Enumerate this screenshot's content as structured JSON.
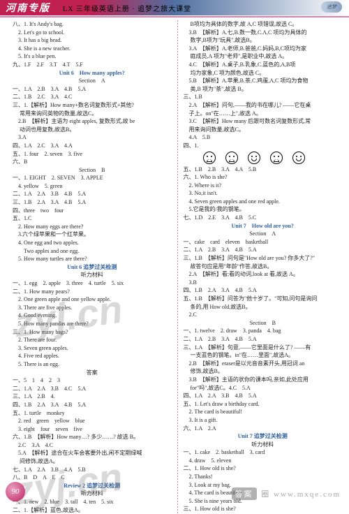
{
  "header": {
    "title": "河南专版",
    "sub": "LX 三年级英语上册 · 追梦之旅大课堂",
    "logo": "追梦"
  },
  "left": [
    {
      "t": "八、1. It's Andy's bag."
    },
    {
      "t": "　2. Let's go to school."
    },
    {
      "t": "　3. It has a big head."
    },
    {
      "t": "　4. She is a new teacher."
    },
    {
      "t": "　5. It's a blue pen."
    },
    {
      "t": "九、1.F　2.F　3.T　4.T　5.F"
    },
    {
      "t": "Unit 6　How many apples?",
      "cls": "blue center"
    },
    {
      "t": "Section　A",
      "cls": "center"
    },
    {
      "t": "一、1.A　2.B　3.A　4.B　5.A"
    },
    {
      "t": "二、1.B　2.C　3.A　4.C"
    },
    {
      "t": "三、1.【解析】How many+数名词复数形式+其他?",
      "cls": ""
    },
    {
      "t": "　 常用来询问英物的数量,故选C。"
    },
    {
      "t": "　2.B　【解析】主语为 eight apples, 复数形式,故 be"
    },
    {
      "t": "　 动词也用复数,故选B。"
    },
    {
      "t": "　3.A"
    },
    {
      "t": "四、1.A　2.C　3.A　4.A"
    },
    {
      "t": "五、1. four　2. seven　3. five"
    },
    {
      "t": "六、B"
    },
    {
      "t": "Section　B",
      "cls": "center"
    },
    {
      "t": "一、1. EIGHT　2. SEVEN　3. APPLE"
    },
    {
      "t": "　4. yellow　5. green"
    },
    {
      "t": "二、1.A　2.A　3.B　4.B　5.A"
    },
    {
      "t": "三、1.B　2.A　3.A　4.B　5.A"
    },
    {
      "t": "四、three　two　four"
    },
    {
      "t": "五、1.C"
    },
    {
      "t": "　2. How many eggs are there?"
    },
    {
      "t": "　3.六个绿苹果和一个红苹果。"
    },
    {
      "t": "　4. One egg and two apples."
    },
    {
      "t": "　　Two apples and one egg."
    },
    {
      "t": "　5. How many turtles are there?"
    },
    {
      "t": "Unit 6 追梦过关检测",
      "cls": "blue center"
    },
    {
      "t": "听力材料",
      "cls": "center"
    },
    {
      "t": "一、1. egg　2. apple　3. three　4. turtle　5. six"
    },
    {
      "t": "二、1. How many pears?"
    },
    {
      "t": "　2. One green apple and one yellow apple."
    },
    {
      "t": "　3. There are five apples."
    },
    {
      "t": "　4. Good evening."
    },
    {
      "t": "　5. How many pandas are there?"
    },
    {
      "t": "三、1. How many bags?"
    },
    {
      "t": "　2. There are four."
    },
    {
      "t": "　3. Seven green apples."
    },
    {
      "t": "　4. Five red apples."
    },
    {
      "t": "　5. There is an egg."
    },
    {
      "t": "答案",
      "cls": "center"
    },
    {
      "t": "一、5　1　4　2　3"
    },
    {
      "t": "二、1.A　2.A　3.B　4.C　5.A"
    },
    {
      "t": "三、1.A　2.B　4."
    },
    {
      "t": "四、1.B　2.A　3.A　4.B　5.A"
    },
    {
      "t": "五、1. turtle　monkey"
    },
    {
      "t": "　2. red　green　yellow　blue"
    },
    {
      "t": "　3. eight　four　seven　five"
    },
    {
      "t": "六、1.B　【解析】How many…? 多少……? 故选 B。"
    },
    {
      "t": "　2.C　3.A　4.C"
    },
    {
      "t": "　5.A　【解析】途合在火车会客要外出,闲不定期绿喊"
    },
    {
      "t": "　 间修饰,故选A。"
    },
    {
      "t": "七、1.A　2.A　3.B　4.A　5.B"
    },
    {
      "t": "八、B　D　A　E　C"
    },
    {
      "t": "Review 2 追梦过关检测",
      "cls": "blue center"
    },
    {
      "t": "听力材料",
      "cls": "center"
    },
    {
      "t": "一、1. new　2. blue　3. tall　4. ten　5. six"
    },
    {
      "t": "二、1.【解析】蓝色,故选A。"
    }
  ],
  "right": [
    {
      "t": "　 B项均为具体的数字,故 A,C 项错误,故选 C。"
    },
    {
      "t": "　3.B　【解析】A.七,B.数一数,C.A,C 项均为具体的"
    },
    {
      "t": "　 数字,B项为\"玩具\",故选B。"
    },
    {
      "t": "　3.A　【解析】A.老师,B.爸爸,C.妈妈,B,C项均为家"
    },
    {
      "t": "　 庭成员,A 项为\"老师\",是职业中,故选 A。"
    },
    {
      "t": "　4.C　【解析】A.桌子,B.乳象,C.蓝色的,A,B项"
    },
    {
      "t": "　 均为家象,C 项为颜色,故选 C。"
    },
    {
      "t": "　5.B　【解析】A.苹果,B.茶,C.鸡蛋,A,C 项均为食物"
    },
    {
      "t": "　 类,B 项为\"茶\",故选 B。"
    },
    {
      "t": "三、1.B"
    },
    {
      "t": "　2.A　【解析】问句,——我的书在哪儿? ——它在桌"
    },
    {
      "t": "　子上。on\"在……上\",故选 A。"
    },
    {
      "t": "　3.C　【解析】How many 后跟可数名词复数形式,常"
    },
    {
      "t": "　用来询问数量,故选C。"
    },
    {
      "t": "　4.A　5.B"
    },
    {
      "t": "四、1.",
      "faces": true
    },
    {
      "t": "五、1.B　2.B　3.A　4.A　5.B"
    },
    {
      "t": "六、1. Who is she?"
    },
    {
      "t": "　2. Where is it?"
    },
    {
      "t": "　3. No,it isn't."
    },
    {
      "t": "　4. Seven green apples and one red apple."
    },
    {
      "t": "　5.它是我的/我的钢笔。"
    },
    {
      "t": "七、1.D　2.E　3.A　4.B　5.C"
    },
    {
      "t": "Unit 7　How old are you?",
      "cls": "blue center"
    },
    {
      "t": "Section　A",
      "cls": "center"
    },
    {
      "t": "一、cake　card　eleven　basketball"
    },
    {
      "t": "二、1.A　2.B　3.A　4.B　5.A"
    },
    {
      "t": "三、1.B　【解析】问句是\"How old are you? 你多大了?\""
    },
    {
      "t": "　 故答句应是用\"年龄\"作答,故选B。"
    },
    {
      "t": "　2.A　【解析】看;看的动词,look at 看,故选 A。"
    },
    {
      "t": "　3.B"
    },
    {
      "t": "四、1.B　2.A　3.A　4.B　5.A"
    },
    {
      "t": "五、1.B　【解析】问答为\"他十岁了。\"可知,问句是询问"
    },
    {
      "t": "　 条的,用 How old,故选B。"
    },
    {
      "t": "　2.C"
    },
    {
      "t": "Section　B",
      "cls": "center"
    },
    {
      "t": "一、1. twelve　2. draw　3. panda　4. bag"
    },
    {
      "t": "二、1.A　2.B　3.A　4.B　5.A"
    },
    {
      "t": "三、1.A　【解析】句意,——它里面是什么了? ——有"
    },
    {
      "t": "　 一支蓝色的钢笔。in\"在……里面\",故选A。"
    },
    {
      "t": "　2.B　【解析】eraser是以元音音素开头,用冠词 an"
    },
    {
      "t": "　 修饰,故选B。"
    },
    {
      "t": "　3.B　【解析】主语的状你的课本吗,亲如,此处应用"
    },
    {
      "t": "　 for\"吗\",故选C。4.C　5.A"
    },
    {
      "t": "四、1.A　2.A　3.B　4.B　5.A"
    },
    {
      "t": "五、1. Let's draw a birthday card."
    },
    {
      "t": "　2. The card is beautiful!"
    },
    {
      "t": "　3. It is a gift."
    },
    {
      "t": "六、1.A　2.A"
    },
    {
      "t": "Unit 7 追梦过关检测",
      "cls": "blue center"
    },
    {
      "t": "听力材料",
      "cls": "center"
    },
    {
      "t": "一、1. cake　2. basketball　3. card"
    },
    {
      "t": "　4. draw　5. eleven"
    },
    {
      "t": "二、1. How old is she?"
    },
    {
      "t": "　2. Thanks!"
    },
    {
      "t": "　3. Look at my bag."
    },
    {
      "t": "　4. The card is beautiful!"
    },
    {
      "t": "　5. She is nine years old."
    },
    {
      "t": "三、1. How old is she?"
    }
  ],
  "page": "90",
  "footer_badge": "答案",
  "footer_text": "圈  www.mxqe.com"
}
